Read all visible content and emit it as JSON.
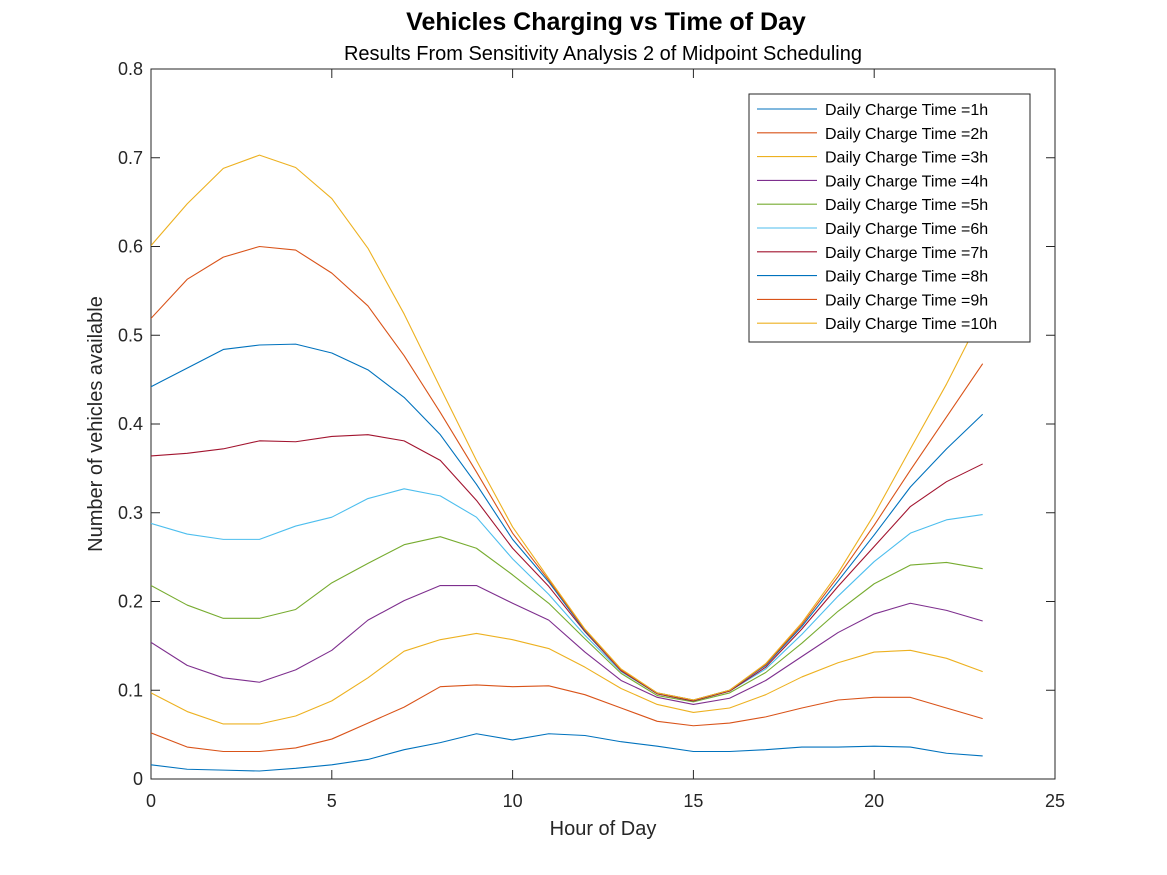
{
  "chart_data": {
    "type": "line",
    "title": "Vehicles Charging vs Time of Day",
    "subtitle": "Results From Sensitivity Analysis 2 of Midpoint Scheduling",
    "xlabel": "Hour of Day",
    "ylabel": "Number of vehicles available",
    "xlim": [
      0,
      25
    ],
    "ylim": [
      0,
      0.8
    ],
    "xticks": [
      0,
      5,
      10,
      15,
      20,
      25
    ],
    "yticks": [
      0,
      0.1,
      0.2,
      0.3,
      0.4,
      0.5,
      0.6,
      0.7,
      0.8
    ],
    "xtick_labels": [
      "0",
      "5",
      "10",
      "15",
      "20",
      "25"
    ],
    "ytick_labels": [
      "0",
      "0.1",
      "0.2",
      "0.3",
      "0.4",
      "0.5",
      "0.6",
      "0.7",
      "0.8"
    ],
    "grid": false,
    "legend_position": "top-right",
    "x": [
      0,
      1,
      2,
      3,
      4,
      5,
      6,
      7,
      8,
      9,
      10,
      11,
      12,
      13,
      14,
      15,
      16,
      17,
      18,
      19,
      20,
      21,
      22,
      23
    ],
    "series": [
      {
        "name": "Daily Charge Time =1h",
        "color": "#0072BD",
        "values": [
          0.016,
          0.011,
          0.01,
          0.009,
          0.012,
          0.016,
          0.022,
          0.033,
          0.041,
          0.051,
          0.044,
          0.051,
          0.049,
          0.042,
          0.037,
          0.031,
          0.031,
          0.033,
          0.036,
          0.036,
          0.037,
          0.036,
          0.029,
          0.026
        ]
      },
      {
        "name": "Daily Charge Time =2h",
        "color": "#D95319",
        "values": [
          0.052,
          0.036,
          0.031,
          0.031,
          0.035,
          0.045,
          0.063,
          0.081,
          0.104,
          0.106,
          0.104,
          0.105,
          0.095,
          0.08,
          0.065,
          0.06,
          0.063,
          0.07,
          0.08,
          0.089,
          0.092,
          0.092,
          0.08,
          0.068
        ]
      },
      {
        "name": "Daily Charge Time =3h",
        "color": "#EDB120",
        "values": [
          0.097,
          0.076,
          0.062,
          0.062,
          0.071,
          0.088,
          0.114,
          0.144,
          0.157,
          0.164,
          0.157,
          0.147,
          0.126,
          0.102,
          0.084,
          0.075,
          0.08,
          0.095,
          0.115,
          0.131,
          0.143,
          0.145,
          0.136,
          0.121
        ]
      },
      {
        "name": "Daily Charge Time =4h",
        "color": "#7E2F8E",
        "values": [
          0.154,
          0.128,
          0.114,
          0.109,
          0.123,
          0.145,
          0.179,
          0.201,
          0.218,
          0.218,
          0.198,
          0.179,
          0.143,
          0.111,
          0.092,
          0.084,
          0.091,
          0.111,
          0.138,
          0.165,
          0.186,
          0.198,
          0.19,
          0.178
        ]
      },
      {
        "name": "Daily Charge Time =5h",
        "color": "#77AC30",
        "values": [
          0.218,
          0.196,
          0.181,
          0.181,
          0.191,
          0.221,
          0.243,
          0.264,
          0.273,
          0.26,
          0.23,
          0.198,
          0.158,
          0.119,
          0.094,
          0.087,
          0.097,
          0.12,
          0.153,
          0.189,
          0.22,
          0.241,
          0.244,
          0.237
        ]
      },
      {
        "name": "Daily Charge Time =6h",
        "color": "#4DBEEE",
        "values": [
          0.288,
          0.276,
          0.27,
          0.27,
          0.285,
          0.295,
          0.316,
          0.327,
          0.319,
          0.295,
          0.248,
          0.208,
          0.162,
          0.121,
          0.096,
          0.088,
          0.099,
          0.124,
          0.163,
          0.206,
          0.245,
          0.277,
          0.292,
          0.298
        ]
      },
      {
        "name": "Daily Charge Time =7h",
        "color": "#A2142F",
        "values": [
          0.364,
          0.367,
          0.372,
          0.381,
          0.38,
          0.386,
          0.388,
          0.381,
          0.359,
          0.314,
          0.26,
          0.217,
          0.166,
          0.122,
          0.096,
          0.088,
          0.099,
          0.126,
          0.169,
          0.217,
          0.262,
          0.307,
          0.335,
          0.355
        ]
      },
      {
        "name": "Daily Charge Time =8h",
        "color": "#0072BD",
        "values": [
          0.442,
          0.463,
          0.484,
          0.489,
          0.49,
          0.48,
          0.461,
          0.43,
          0.388,
          0.332,
          0.27,
          0.222,
          0.167,
          0.123,
          0.097,
          0.089,
          0.1,
          0.128,
          0.172,
          0.223,
          0.275,
          0.329,
          0.372,
          0.411
        ]
      },
      {
        "name": "Daily Charge Time =9h",
        "color": "#D95319",
        "values": [
          0.519,
          0.563,
          0.588,
          0.6,
          0.596,
          0.57,
          0.533,
          0.477,
          0.413,
          0.346,
          0.277,
          0.224,
          0.168,
          0.123,
          0.097,
          0.089,
          0.1,
          0.129,
          0.174,
          0.228,
          0.286,
          0.348,
          0.408,
          0.468
        ]
      },
      {
        "name": "Daily Charge Time =10h",
        "color": "#EDB120",
        "values": [
          0.601,
          0.648,
          0.688,
          0.703,
          0.689,
          0.654,
          0.598,
          0.524,
          0.441,
          0.359,
          0.284,
          0.226,
          0.169,
          0.124,
          0.097,
          0.089,
          0.1,
          0.13,
          0.176,
          0.232,
          0.298,
          0.372,
          0.445,
          0.525
        ]
      }
    ]
  }
}
